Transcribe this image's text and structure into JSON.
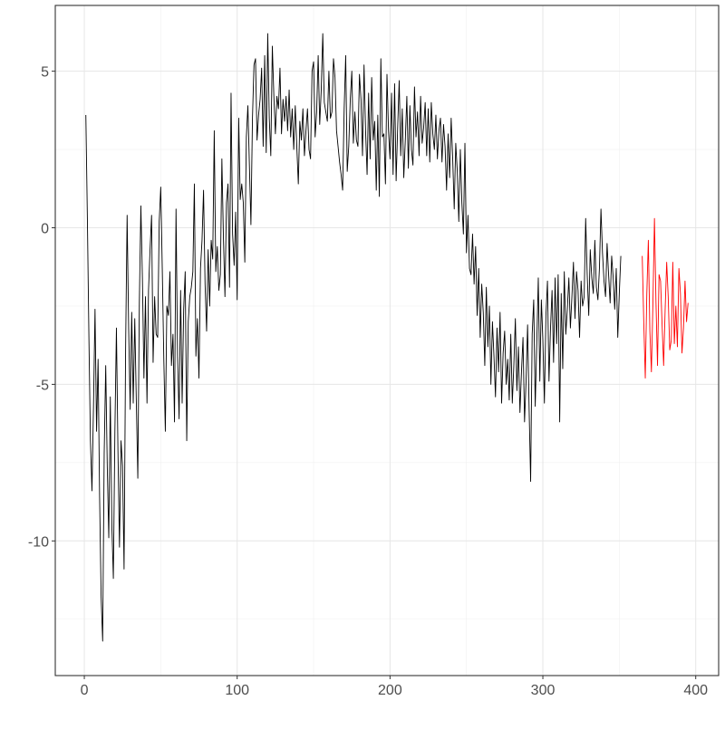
{
  "chart_data": {
    "type": "line",
    "title": "",
    "xlabel": "",
    "ylabel": "",
    "xlim": [
      -19,
      415
    ],
    "ylim": [
      -14.3,
      7.1
    ],
    "grid": true,
    "legend": "none",
    "x_ticks": [
      0,
      100,
      200,
      300,
      400
    ],
    "x_tick_labels": [
      "0",
      "100",
      "200",
      "300",
      "400"
    ],
    "y_ticks": [
      -10,
      -5,
      0,
      5
    ],
    "y_tick_labels": [
      "-10",
      "-5",
      "0",
      "5"
    ],
    "series": [
      {
        "color": "#000000",
        "x_start": 1,
        "values": [
          3.6,
          0.3,
          -3.5,
          -6.8,
          -8.4,
          -5.7,
          -2.6,
          -6.5,
          -4.2,
          -8.6,
          -11.8,
          -13.2,
          -7.2,
          -4.4,
          -7.6,
          -9.9,
          -5.4,
          -9.5,
          -11.2,
          -6.5,
          -3.2,
          -7.1,
          -10.2,
          -6.8,
          -7.6,
          -10.9,
          -3.9,
          0.4,
          -3.2,
          -5.8,
          -2.7,
          -5.6,
          -2.9,
          -5.5,
          -8.0,
          -2.4,
          0.7,
          -1.6,
          -4.8,
          -2.2,
          -5.6,
          -2.0,
          -0.7,
          0.4,
          -4.3,
          -2.2,
          -3.4,
          -3.5,
          0.2,
          1.3,
          -1.3,
          -4.2,
          -6.5,
          -2.5,
          -2.8,
          -1.4,
          -4.4,
          -3.4,
          -6.2,
          0.6,
          -4.1,
          -6.1,
          -2.0,
          -5.6,
          -2.6,
          -1.4,
          -6.8,
          -3.0,
          -2.2,
          -1.9,
          -1.4,
          1.4,
          -4.1,
          -2.9,
          -4.8,
          -1.3,
          -0.4,
          1.2,
          -1.8,
          -3.3,
          -0.7,
          -2.5,
          -0.4,
          -1.0,
          3.1,
          -1.4,
          -0.6,
          -2.0,
          -1.5,
          2.2,
          -0.3,
          -2.2,
          0.8,
          1.4,
          -1.9,
          4.3,
          -0.2,
          -1.2,
          0.5,
          -2.3,
          3.5,
          0.9,
          1.4,
          0.8,
          -1.1,
          2.9,
          3.9,
          2.0,
          0.1,
          3.5,
          5.2,
          5.4,
          2.8,
          3.6,
          4.1,
          5.1,
          2.6,
          5.5,
          2.4,
          6.2,
          3.5,
          2.3,
          5.8,
          4.2,
          3.0,
          4.2,
          3.8,
          5.1,
          3.0,
          4.1,
          3.4,
          4.2,
          3.1,
          4.4,
          2.9,
          3.8,
          2.5,
          3.9,
          2.6,
          1.4,
          3.4,
          2.8,
          3.8,
          2.3,
          3.1,
          3.8,
          2.5,
          2.2,
          5.0,
          5.3,
          2.9,
          3.7,
          5.5,
          3.3,
          4.4,
          6.2,
          4.0,
          3.7,
          3.4,
          5.0,
          3.5,
          3.7,
          5.4,
          4.8,
          3.1,
          2.6,
          2.1,
          1.7,
          1.2,
          3.8,
          5.5,
          1.8,
          2.6,
          4.1,
          5.0,
          2.7,
          3.7,
          2.8,
          2.6,
          4.9,
          4.1,
          2.3,
          5.2,
          3.1,
          1.7,
          4.3,
          2.2,
          4.8,
          2.8,
          3.4,
          1.2,
          3.6,
          1.0,
          5.4,
          2.9,
          3.0,
          1.4,
          4.9,
          3.1,
          2.2,
          4.3,
          1.7,
          4.6,
          1.5,
          3.2,
          4.7,
          2.3,
          3.8,
          1.6,
          2.8,
          4.2,
          1.9,
          3.9,
          2.5,
          2.0,
          4.5,
          2.9,
          3.7,
          2.3,
          4.2,
          2.7,
          3.2,
          4.0,
          2.3,
          3.8,
          2.1,
          4.0,
          3.0,
          2.5,
          3.6,
          2.2,
          3.1,
          3.5,
          2.1,
          3.3,
          2.6,
          1.2,
          3.0,
          1.6,
          3.5,
          2.2,
          0.6,
          2.7,
          1.8,
          0.2,
          2.5,
          0.8,
          -0.2,
          2.7,
          -0.8,
          0.4,
          -1.3,
          -1.5,
          -0.2,
          -1.8,
          -0.6,
          -2.8,
          -1.3,
          -3.5,
          -1.8,
          -2.7,
          -4.4,
          -1.9,
          -3.8,
          -2.5,
          -5.0,
          -3.0,
          -4.1,
          -5.4,
          -3.2,
          -4.6,
          -2.7,
          -5.6,
          -4.0,
          -3.3,
          -5.0,
          -4.2,
          -5.5,
          -3.4,
          -5.6,
          -4.4,
          -2.9,
          -5.2,
          -3.8,
          -5.9,
          -4.6,
          -3.5,
          -6.2,
          -4.9,
          -3.1,
          -5.8,
          -8.1,
          -3.4,
          -2.3,
          -5.7,
          -3.7,
          -1.6,
          -4.9,
          -2.3,
          -3.6,
          -5.6,
          -2.8,
          -1.7,
          -4.9,
          -3.2,
          -2.0,
          -4.3,
          -1.6,
          -3.7,
          -1.5,
          -6.2,
          -2.1,
          -4.5,
          -1.4,
          -3.4,
          -2.6,
          -1.6,
          -3.2,
          -2.2,
          -1.1,
          -2.9,
          -1.4,
          -2.0,
          -3.5,
          -1.7,
          -2.5,
          -2.2,
          0.3,
          -1.5,
          -2.8,
          -0.7,
          -1.6,
          -2.1,
          -0.4,
          -1.9,
          -2.3,
          -1.3,
          0.6,
          -0.8,
          -1.7,
          -2.2,
          -0.5,
          -1.5,
          -2.4,
          -0.9,
          -1.6,
          -2.6,
          -1.3,
          -3.5,
          -2.1,
          -0.9
        ]
      },
      {
        "color": "#ff0000",
        "x_start": 365,
        "values": [
          -0.9,
          -3.0,
          -4.8,
          -2.1,
          -0.4,
          -3.3,
          -4.6,
          -2.4,
          0.3,
          -2.4,
          -4.4,
          -1.5,
          -1.7,
          -3.1,
          -4.4,
          -2.6,
          -1.1,
          -2.2,
          -3.9,
          -3.6,
          -1.1,
          -3.7,
          -2.5,
          -3.8,
          -1.3,
          -2.1,
          -4.0,
          -3.2,
          -1.7,
          -3.0,
          -2.4
        ]
      }
    ]
  }
}
